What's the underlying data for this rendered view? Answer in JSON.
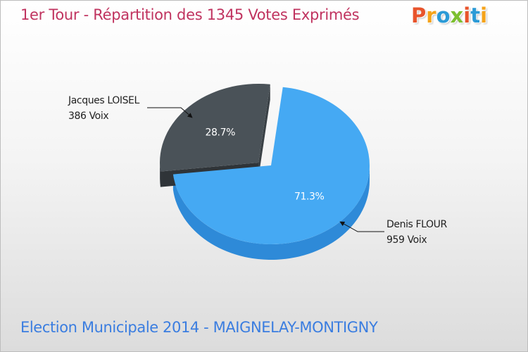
{
  "header": {
    "title": "1er Tour - Répartition des 1345 Votes Exprimés",
    "logo_text": "Proxiti"
  },
  "footer": {
    "subtitle": "Election Municipale 2014 - MAIGNELAY-MONTIGNY"
  },
  "colors": {
    "title": "#c0335f",
    "subtitle": "#3a7de0",
    "logo_letters": [
      "#e8542c",
      "#f5a31a",
      "#2b9ad6",
      "#7cbf2f",
      "#e8542c",
      "#2b9ad6",
      "#f5a31a"
    ]
  },
  "chart_data": {
    "type": "pie",
    "title": "1er Tour - Répartition des 1345 Votes Exprimés",
    "total": 1345,
    "slices": [
      {
        "name": "Denis FLOUR",
        "votes_label": "959 Voix",
        "votes": 959,
        "percent": 71.3,
        "percent_label": "71.3%",
        "color": "#45a9f3",
        "side_color": "#2e8ad8",
        "text_color": "#ffffff"
      },
      {
        "name": "Jacques LOISEL",
        "votes_label": "386 Voix",
        "votes": 386,
        "percent": 28.7,
        "percent_label": "28.7%",
        "color": "#4a5258",
        "side_color": "#363c41",
        "text_color": "#ffffff"
      }
    ]
  }
}
